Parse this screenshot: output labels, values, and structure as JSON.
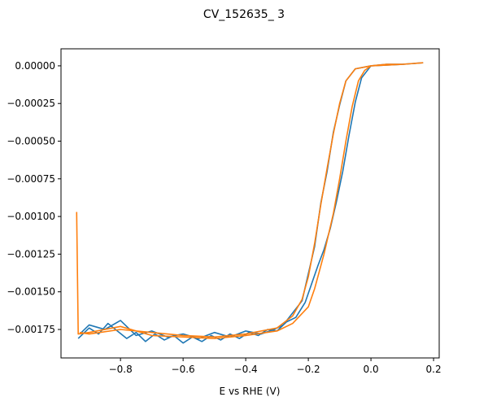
{
  "chart_data": {
    "type": "line",
    "title": "CV_152635_ 3",
    "x_label": "E vs RHE (V)",
    "xlim": [
      -0.99,
      0.218
    ],
    "ylim": [
      -0.001939,
      0.000113
    ],
    "xticks": [
      {
        "value": -0.8,
        "label": "−0.8"
      },
      {
        "value": -0.6,
        "label": "−0.6"
      },
      {
        "value": -0.4,
        "label": "−0.4"
      },
      {
        "value": -0.2,
        "label": "−0.2"
      },
      {
        "value": 0.0,
        "label": "0.0"
      },
      {
        "value": 0.2,
        "label": "0.2"
      }
    ],
    "yticks": [
      {
        "value": 0.0,
        "label": "0.00000"
      },
      {
        "value": -0.00025,
        "label": "−0.00025"
      },
      {
        "value": -0.0005,
        "label": "−0.00050"
      },
      {
        "value": -0.00075,
        "label": "−0.00075"
      },
      {
        "value": -0.001,
        "label": "−0.00100"
      },
      {
        "value": -0.00125,
        "label": "−0.00125"
      },
      {
        "value": -0.0015,
        "label": "−0.00150"
      },
      {
        "value": -0.00175,
        "label": "−0.00175"
      }
    ],
    "series": [
      {
        "color": "#1f77b4",
        "x": [
          -0.935,
          -0.9,
          -0.87,
          -0.84,
          -0.81,
          -0.78,
          -0.75,
          -0.72,
          -0.69,
          -0.66,
          -0.63,
          -0.6,
          -0.57,
          -0.54,
          -0.51,
          -0.48,
          -0.45,
          -0.42,
          -0.39,
          -0.36,
          -0.33,
          -0.3,
          -0.27,
          -0.24,
          -0.21,
          -0.19,
          -0.17,
          -0.15,
          -0.13,
          -0.11,
          -0.09,
          -0.07,
          -0.05,
          -0.03,
          0.0,
          0.05,
          0.1,
          0.165,
          0.1,
          0.0,
          -0.05,
          -0.08,
          -0.1,
          -0.12,
          -0.14,
          -0.16,
          -0.18,
          -0.2,
          -0.22,
          -0.25,
          -0.28,
          -0.31,
          -0.35,
          -0.4,
          -0.45,
          -0.5,
          -0.55,
          -0.6,
          -0.65,
          -0.7,
          -0.75,
          -0.8,
          -0.85,
          -0.9,
          -0.93
        ],
        "values": [
          -0.00181,
          -0.00174,
          -0.00178,
          -0.00171,
          -0.00176,
          -0.00181,
          -0.00177,
          -0.00183,
          -0.00178,
          -0.00182,
          -0.00179,
          -0.00184,
          -0.0018,
          -0.00183,
          -0.00179,
          -0.00182,
          -0.00178,
          -0.00181,
          -0.00177,
          -0.00179,
          -0.00175,
          -0.00176,
          -0.0017,
          -0.00167,
          -0.00157,
          -0.00145,
          -0.00133,
          -0.00122,
          -0.00108,
          -0.0009,
          -0.0007,
          -0.00046,
          -0.00024,
          -8e-05,
          0.0,
          1e-05,
          1e-05,
          2e-05,
          1e-05,
          0.0,
          -2e-05,
          -0.0001,
          -0.00026,
          -0.00044,
          -0.0007,
          -0.00091,
          -0.0012,
          -0.00138,
          -0.00156,
          -0.00164,
          -0.00172,
          -0.00175,
          -0.00178,
          -0.00176,
          -0.0018,
          -0.00177,
          -0.00181,
          -0.00178,
          -0.0018,
          -0.00176,
          -0.00179,
          -0.00169,
          -0.00175,
          -0.00172,
          -0.00178
        ]
      },
      {
        "color": "#ff7f0e",
        "x": [
          -0.94,
          -0.935,
          -0.9,
          -0.8,
          -0.7,
          -0.6,
          -0.5,
          -0.4,
          -0.3,
          -0.25,
          -0.2,
          -0.18,
          -0.15,
          -0.12,
          -0.1,
          -0.08,
          -0.06,
          -0.04,
          -0.02,
          0.0,
          0.05,
          0.1,
          0.165,
          0.1,
          0.0,
          -0.05,
          -0.08,
          -0.1,
          -0.12,
          -0.14,
          -0.16,
          -0.18,
          -0.2,
          -0.22,
          -0.25,
          -0.3,
          -0.4,
          -0.5,
          -0.6,
          -0.7,
          -0.8,
          -0.9,
          -0.93
        ],
        "values": [
          -0.00097,
          -0.00178,
          -0.00177,
          -0.00173,
          -0.00179,
          -0.0018,
          -0.00181,
          -0.00179,
          -0.00176,
          -0.00171,
          -0.0016,
          -0.00148,
          -0.00125,
          -0.00098,
          -0.00075,
          -0.0005,
          -0.00027,
          -0.0001,
          -3e-05,
          0.0,
          1e-05,
          1e-05,
          2e-05,
          1e-05,
          0.0,
          -2e-05,
          -0.0001,
          -0.00025,
          -0.00045,
          -0.00068,
          -0.00092,
          -0.00118,
          -0.0014,
          -0.00155,
          -0.00166,
          -0.00174,
          -0.00178,
          -0.0018,
          -0.00179,
          -0.00177,
          -0.00175,
          -0.00178,
          -0.00177
        ]
      }
    ]
  }
}
